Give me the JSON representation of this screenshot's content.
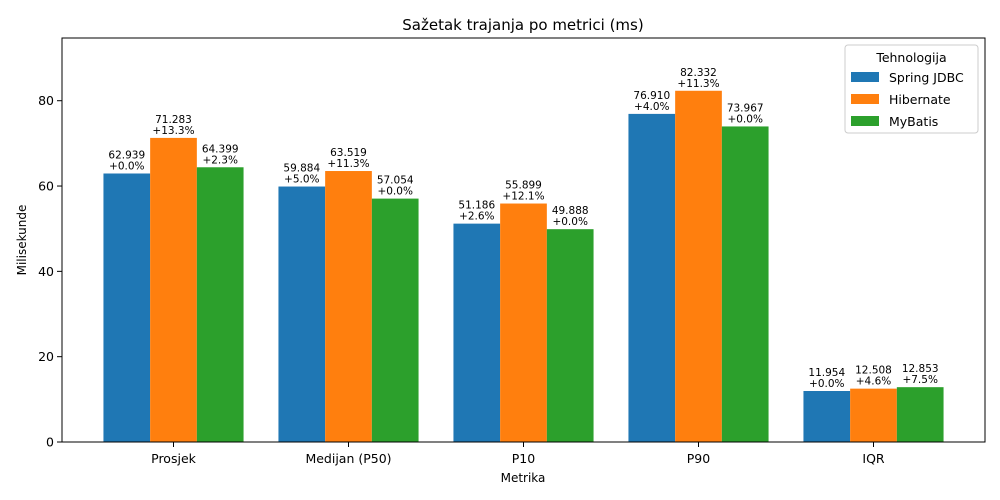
{
  "chart_data": {
    "type": "bar",
    "title": "Sažetak trajanja po metrici (ms)",
    "xlabel": "Metrika",
    "ylabel": "Milisekunde",
    "ylim": [
      0,
      94.7
    ],
    "yticks": [
      0,
      20,
      40,
      60,
      80
    ],
    "categories": [
      "Prosjek",
      "Medijan (P50)",
      "P10",
      "P90",
      "IQR"
    ],
    "grid": false,
    "legend": {
      "title": "Tehnologija",
      "position": "top-right"
    },
    "series": [
      {
        "name": "Spring JDBC",
        "color": "#1f77b4",
        "values": [
          62.939,
          59.884,
          51.186,
          76.91,
          11.954
        ],
        "labels": [
          "62.939",
          "59.884",
          "51.186",
          "76.910",
          "11.954"
        ],
        "deltas": [
          "+0.0%",
          "+5.0%",
          "+2.6%",
          "+4.0%",
          "+0.0%"
        ]
      },
      {
        "name": "Hibernate",
        "color": "#ff7f0e",
        "values": [
          71.283,
          63.519,
          55.899,
          82.332,
          12.508
        ],
        "labels": [
          "71.283",
          "63.519",
          "55.899",
          "82.332",
          "12.508"
        ],
        "deltas": [
          "+13.3%",
          "+11.3%",
          "+12.1%",
          "+11.3%",
          "+4.6%"
        ]
      },
      {
        "name": "MyBatis",
        "color": "#2ca02c",
        "values": [
          64.399,
          57.054,
          49.888,
          73.967,
          12.853
        ],
        "labels": [
          "64.399",
          "57.054",
          "49.888",
          "73.967",
          "12.853"
        ],
        "deltas": [
          "+2.3%",
          "+0.0%",
          "+0.0%",
          "+0.0%",
          "+7.5%"
        ]
      }
    ]
  }
}
